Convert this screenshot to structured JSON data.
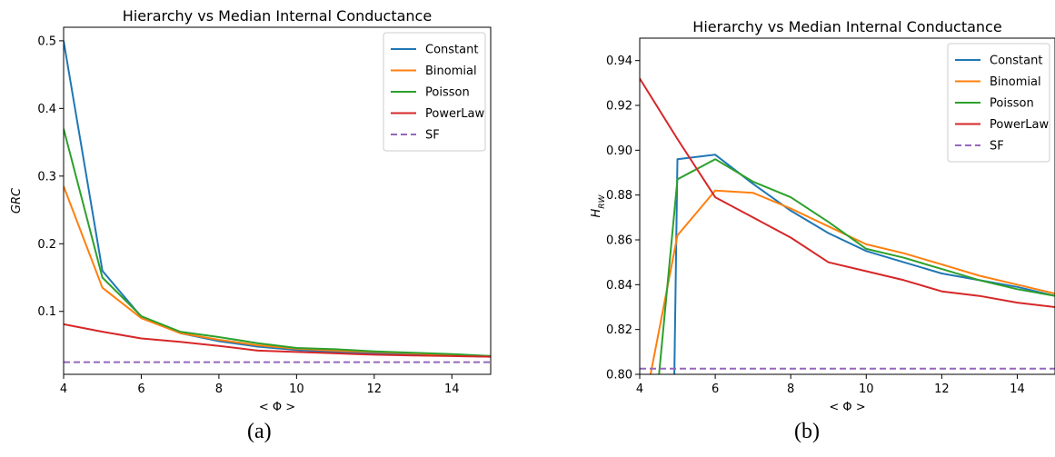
{
  "chart_data": [
    {
      "type": "line",
      "title": "Hierarchy vs Median Internal Conductance",
      "xlabel": "< Φ >",
      "ylabel": "GRC",
      "xlim": [
        4,
        15
      ],
      "ylim": [
        0.007,
        0.52
      ],
      "xticks": [
        4,
        6,
        8,
        10,
        12,
        14
      ],
      "yticks": [
        0.1,
        0.2,
        0.3,
        0.4,
        0.5
      ],
      "legend_position": "top-right",
      "caption": "(a)",
      "series": [
        {
          "name": "Constant",
          "color": "#1f77b4",
          "style": "solid",
          "x": [
            4,
            5,
            6,
            7,
            8,
            9,
            10,
            11,
            12,
            13,
            14,
            15
          ],
          "y": [
            0.5,
            0.16,
            0.092,
            0.068,
            0.056,
            0.048,
            0.043,
            0.04,
            0.038,
            0.036,
            0.035,
            0.033
          ]
        },
        {
          "name": "Binomial",
          "color": "#ff7f0e",
          "style": "solid",
          "x": [
            4,
            5,
            6,
            7,
            8,
            9,
            10,
            11,
            12,
            13,
            14,
            15
          ],
          "y": [
            0.285,
            0.135,
            0.09,
            0.068,
            0.058,
            0.05,
            0.045,
            0.042,
            0.04,
            0.038,
            0.036,
            0.034
          ]
        },
        {
          "name": "Poisson",
          "color": "#2ca02c",
          "style": "solid",
          "x": [
            4,
            5,
            6,
            7,
            8,
            9,
            10,
            11,
            12,
            13,
            14,
            15
          ],
          "y": [
            0.37,
            0.15,
            0.093,
            0.07,
            0.062,
            0.053,
            0.046,
            0.044,
            0.041,
            0.039,
            0.037,
            0.034
          ]
        },
        {
          "name": "PowerLaw",
          "color": "#d62728",
          "style": "solid",
          "x": [
            4,
            5,
            6,
            7,
            8,
            9,
            10,
            11,
            12,
            13,
            14,
            15
          ],
          "y": [
            0.081,
            0.07,
            0.06,
            0.055,
            0.049,
            0.042,
            0.04,
            0.038,
            0.036,
            0.035,
            0.034,
            0.033
          ]
        },
        {
          "name": "SF",
          "color": "#9467bd",
          "style": "dashed",
          "x": [
            4,
            15
          ],
          "y": [
            0.025,
            0.025
          ]
        }
      ]
    },
    {
      "type": "line",
      "title": "Hierarchy vs Median Internal Conductance",
      "xlabel": "< Φ >",
      "ylabel": "H",
      "ylabel_sub": "RW",
      "xlim": [
        4,
        15
      ],
      "ylim": [
        0.8,
        0.95
      ],
      "xticks": [
        4,
        6,
        8,
        10,
        12,
        14
      ],
      "yticks": [
        0.8,
        0.82,
        0.84,
        0.86,
        0.88,
        0.9,
        0.92,
        0.94
      ],
      "legend_position": "top-right",
      "caption": "(b)",
      "series": [
        {
          "name": "Constant",
          "color": "#1f77b4",
          "style": "solid",
          "x": [
            4.9,
            5,
            6,
            7,
            8,
            9,
            10,
            11,
            12,
            13,
            14,
            15
          ],
          "y": [
            0.78,
            0.896,
            0.898,
            0.885,
            0.873,
            0.863,
            0.855,
            0.85,
            0.845,
            0.842,
            0.839,
            0.835
          ]
        },
        {
          "name": "Binomial",
          "color": "#ff7f0e",
          "style": "solid",
          "x": [
            4,
            5,
            6,
            7,
            8,
            9,
            10,
            11,
            12,
            13,
            14,
            15
          ],
          "y": [
            0.775,
            0.862,
            0.882,
            0.881,
            0.874,
            0.866,
            0.858,
            0.854,
            0.849,
            0.844,
            0.84,
            0.836
          ]
        },
        {
          "name": "Poisson",
          "color": "#2ca02c",
          "style": "solid",
          "x": [
            4.4,
            5,
            6,
            7,
            8,
            9,
            10,
            11,
            12,
            13,
            14,
            15
          ],
          "y": [
            0.78,
            0.887,
            0.896,
            0.886,
            0.879,
            0.868,
            0.856,
            0.852,
            0.847,
            0.842,
            0.838,
            0.835
          ]
        },
        {
          "name": "PowerLaw",
          "color": "#d62728",
          "style": "solid",
          "x": [
            4,
            5,
            6,
            7,
            8,
            9,
            10,
            11,
            12,
            13,
            14,
            15
          ],
          "y": [
            0.932,
            0.905,
            0.879,
            0.87,
            0.861,
            0.85,
            0.846,
            0.842,
            0.837,
            0.835,
            0.832,
            0.83
          ]
        },
        {
          "name": "SF",
          "color": "#9467bd",
          "style": "dashed",
          "x": [
            4,
            15
          ],
          "y": [
            0.8025,
            0.8025
          ]
        }
      ]
    }
  ]
}
